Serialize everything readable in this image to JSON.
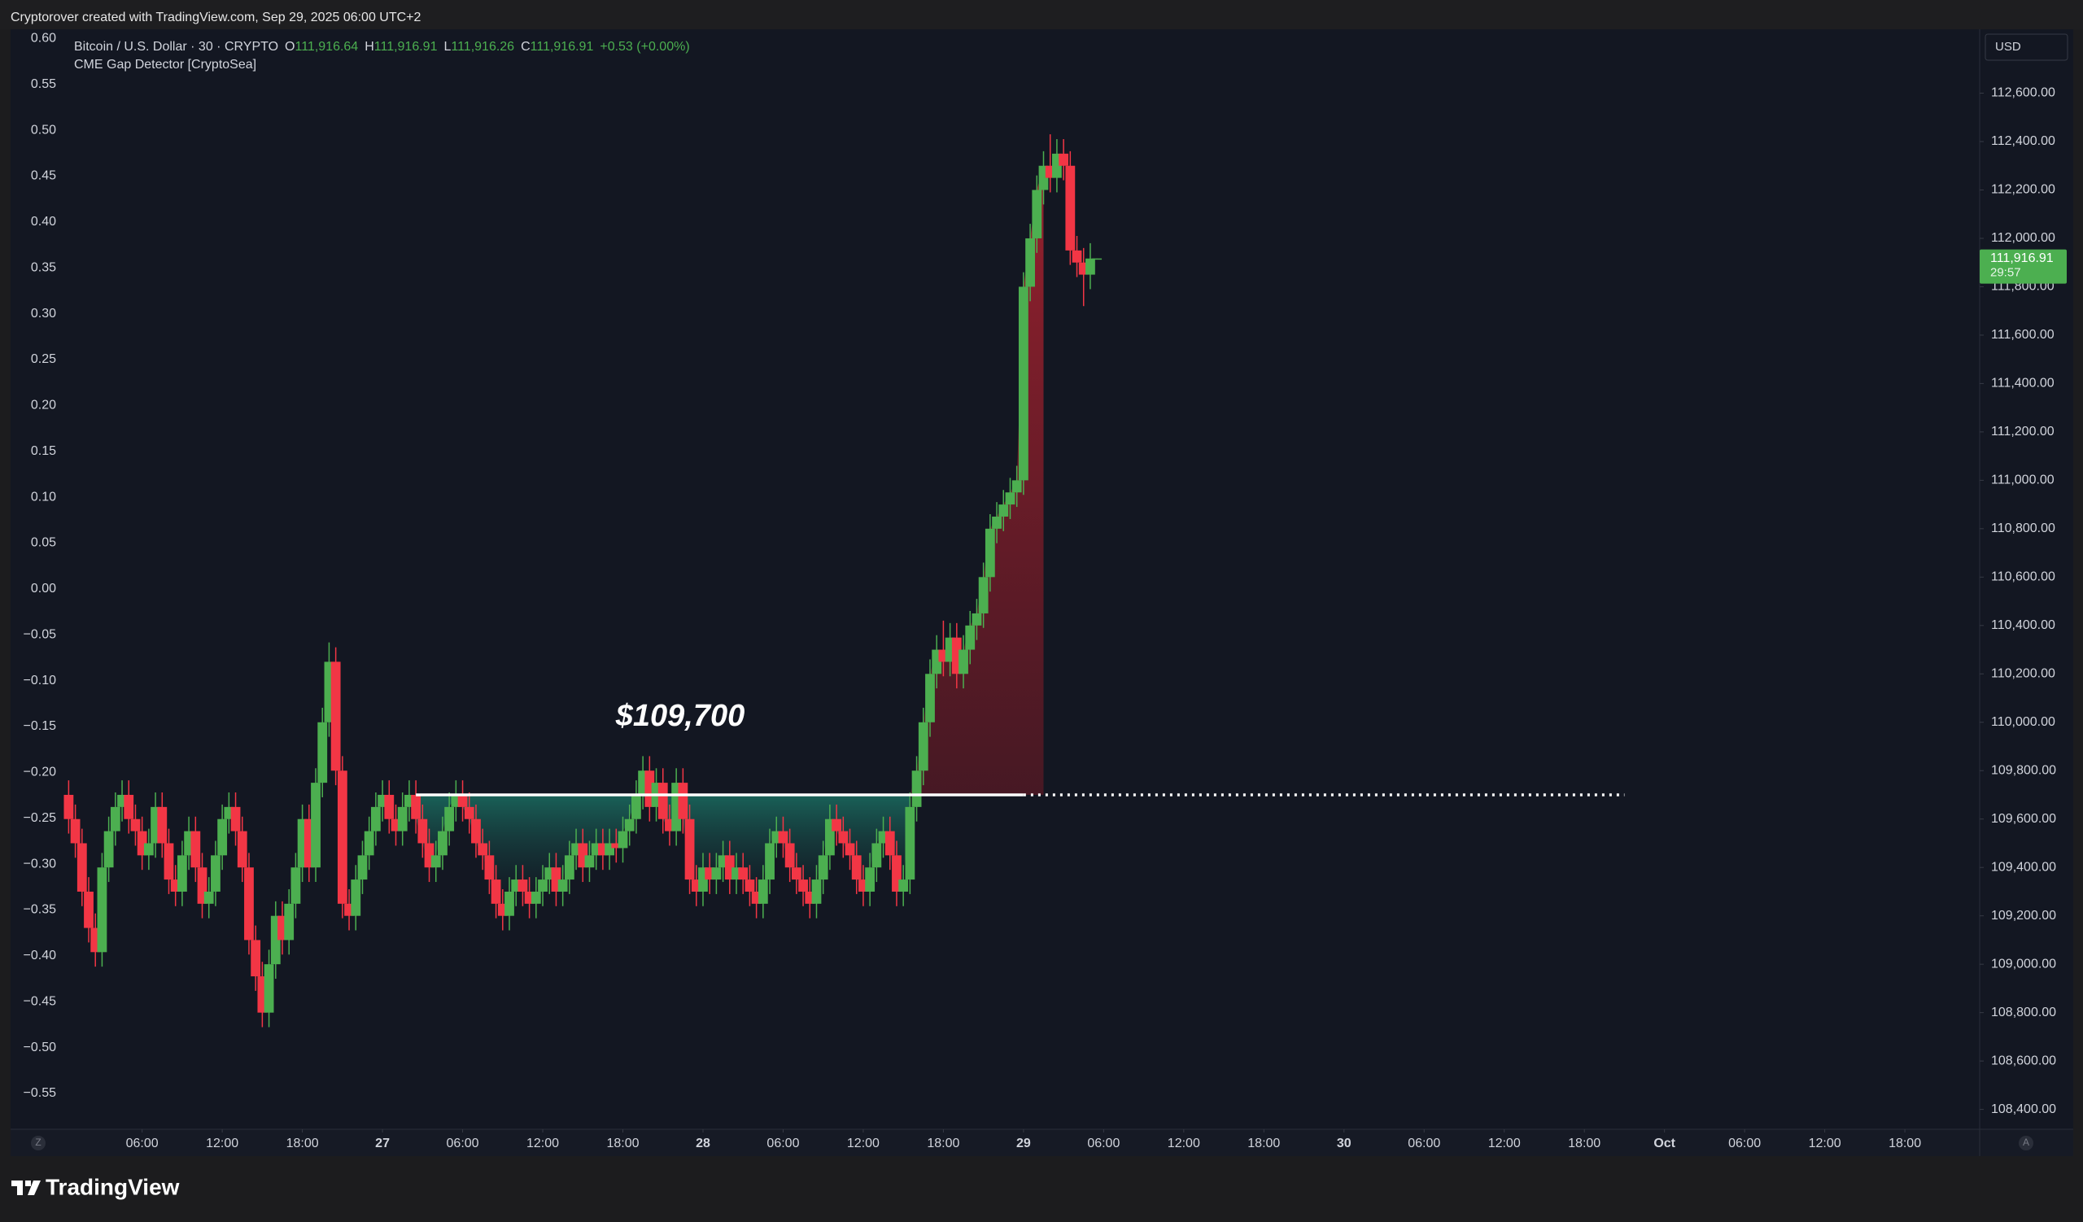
{
  "header": "Cryptorover created with TradingView.com, Sep 29, 2025 06:00 UTC+2",
  "brand": "TradingView",
  "corner_left": "Z",
  "corner_right": "A",
  "chart_data": {
    "type": "candlestick",
    "title": "Bitcoin / U.S. Dollar · 30 · CRYPTO",
    "ohlc_legend": [
      {
        "label": "O",
        "value": "111,916.64"
      },
      {
        "label": "H",
        "value": "111,916.91"
      },
      {
        "label": "L",
        "value": "111,916.26"
      },
      {
        "label": "C",
        "value": "111,916.91"
      }
    ],
    "change": "+0.53 (+0.00%)",
    "indicator": "CME Gap Detector [CryptoSea]",
    "currency": "USD",
    "last_price_label": "111,916.91",
    "countdown": "29:57",
    "annotation": "$109,700",
    "gap_level": 109700,
    "gap_x": [
      26.5,
      72,
      117
    ],
    "up_color": "#4caf50",
    "down_color": "#f23645",
    "xlim": [
      -3.85,
      143.6
    ],
    "xticks": [
      {
        "value": 6,
        "label": "06:00"
      },
      {
        "value": 12,
        "label": "12:00"
      },
      {
        "value": 18,
        "label": "18:00"
      },
      {
        "value": 24,
        "label": "27"
      },
      {
        "value": 30,
        "label": "06:00"
      },
      {
        "value": 36,
        "label": "12:00"
      },
      {
        "value": 42,
        "label": "18:00"
      },
      {
        "value": 48,
        "label": "28"
      },
      {
        "value": 54,
        "label": "06:00"
      },
      {
        "value": 60,
        "label": "12:00"
      },
      {
        "value": 66,
        "label": "18:00"
      },
      {
        "value": 72,
        "label": "29"
      },
      {
        "value": 78,
        "label": "06:00"
      },
      {
        "value": 84,
        "label": "12:00"
      },
      {
        "value": 90,
        "label": "18:00"
      },
      {
        "value": 96,
        "label": "30"
      },
      {
        "value": 102,
        "label": "06:00"
      },
      {
        "value": 108,
        "label": "12:00"
      },
      {
        "value": 114,
        "label": "18:00"
      },
      {
        "value": 120,
        "label": "Oct"
      },
      {
        "value": 126,
        "label": "06:00"
      },
      {
        "value": 132,
        "label": "12:00"
      },
      {
        "value": 138,
        "label": "18:00"
      }
    ],
    "ylim": [
      108318,
      112864
    ],
    "yticks": [
      {
        "value": 108400,
        "label": "108,400.00"
      },
      {
        "value": 108600,
        "label": "108,600.00"
      },
      {
        "value": 108800,
        "label": "108,800.00"
      },
      {
        "value": 109000,
        "label": "109,000.00"
      },
      {
        "value": 109200,
        "label": "109,200.00"
      },
      {
        "value": 109400,
        "label": "109,400.00"
      },
      {
        "value": 109600,
        "label": "109,600.00"
      },
      {
        "value": 109800,
        "label": "109,800.00"
      },
      {
        "value": 110000,
        "label": "110,000.00"
      },
      {
        "value": 110200,
        "label": "110,200.00"
      },
      {
        "value": 110400,
        "label": "110,400.00"
      },
      {
        "value": 110600,
        "label": "110,600.00"
      },
      {
        "value": 110800,
        "label": "110,800.00"
      },
      {
        "value": 111000,
        "label": "111,000.00"
      },
      {
        "value": 111200,
        "label": "111,200.00"
      },
      {
        "value": 111400,
        "label": "111,400.00"
      },
      {
        "value": 111600,
        "label": "111,600.00"
      },
      {
        "value": 111800,
        "label": "111,800.00"
      },
      {
        "value": 112000,
        "label": "112,000.00"
      },
      {
        "value": 112200,
        "label": "112,200.00"
      },
      {
        "value": 112400,
        "label": "112,400.00"
      },
      {
        "value": 112600,
        "label": "112,600.00"
      }
    ],
    "y2lim": [
      -0.589,
      0.61
    ],
    "y2ticks": [
      {
        "value": 0.6,
        "label": "0.60"
      },
      {
        "value": 0.55,
        "label": "0.55"
      },
      {
        "value": 0.5,
        "label": "0.50"
      },
      {
        "value": 0.45,
        "label": "0.45"
      },
      {
        "value": 0.4,
        "label": "0.40"
      },
      {
        "value": 0.35,
        "label": "0.35"
      },
      {
        "value": 0.3,
        "label": "0.30"
      },
      {
        "value": 0.25,
        "label": "0.25"
      },
      {
        "value": 0.2,
        "label": "0.20"
      },
      {
        "value": 0.15,
        "label": "0.15"
      },
      {
        "value": 0.1,
        "label": "0.10"
      },
      {
        "value": 0.05,
        "label": "0.05"
      },
      {
        "value": 0,
        "label": "0.00"
      },
      {
        "value": -0.05,
        "label": "−0.05"
      },
      {
        "value": -0.1,
        "label": "−0.10"
      },
      {
        "value": -0.15,
        "label": "−0.15"
      },
      {
        "value": -0.2,
        "label": "−0.20"
      },
      {
        "value": -0.25,
        "label": "−0.25"
      },
      {
        "value": -0.3,
        "label": "−0.30"
      },
      {
        "value": -0.35,
        "label": "−0.35"
      },
      {
        "value": -0.4,
        "label": "−0.40"
      },
      {
        "value": -0.45,
        "label": "−0.45"
      },
      {
        "value": -0.5,
        "label": "−0.50"
      },
      {
        "value": -0.55,
        "label": "−0.55"
      }
    ],
    "x": [
      0.5,
      1,
      1.5,
      2,
      2.5,
      3,
      3.5,
      4,
      4.5,
      5,
      5.5,
      6,
      6.5,
      7,
      7.5,
      8,
      8.5,
      9,
      9.5,
      10,
      10.5,
      11,
      11.5,
      12,
      12.5,
      13,
      13.5,
      14,
      14.5,
      15,
      15.5,
      16,
      16.5,
      17,
      17.5,
      18,
      18.5,
      19,
      19.5,
      20,
      20.5,
      21,
      21.5,
      22,
      22.5,
      23,
      23.5,
      24,
      24.5,
      25,
      25.5,
      26,
      26.5,
      27,
      27.5,
      28,
      28.5,
      29,
      29.5,
      30,
      30.5,
      31,
      31.5,
      32,
      32.5,
      33,
      33.5,
      34,
      34.5,
      35,
      35.5,
      36,
      36.5,
      37,
      37.5,
      38,
      38.5,
      39,
      39.5,
      40,
      40.5,
      41,
      41.5,
      42,
      42.5,
      43,
      43.5,
      44,
      44.5,
      45,
      45.5,
      46,
      46.5,
      47,
      47.5,
      48,
      48.5,
      49,
      49.5,
      50,
      50.5,
      51,
      51.5,
      52,
      52.5,
      53,
      53.5,
      54,
      54.5,
      55,
      55.5,
      56,
      56.5,
      57,
      57.5,
      58,
      58.5,
      59,
      59.5,
      60,
      60.5,
      61,
      61.5,
      62,
      62.5,
      63,
      63.5,
      64,
      64.5,
      65,
      65.5,
      66,
      66.5,
      67,
      67.5,
      68,
      68.5,
      69,
      69.5,
      70,
      70.5,
      71,
      71.5,
      72,
      72.5,
      73,
      73.5,
      74,
      74.5,
      75,
      75.5,
      76,
      76.5,
      77,
      77.5
    ],
    "open": [
      109700,
      109600,
      109500,
      109300,
      109150,
      109050,
      109400,
      109550,
      109650,
      109700,
      109600,
      109550,
      109450,
      109500,
      109650,
      109500,
      109350,
      109300,
      109450,
      109550,
      109400,
      109250,
      109300,
      109450,
      109600,
      109650,
      109550,
      109400,
      109100,
      108950,
      108800,
      109000,
      109200,
      109100,
      109250,
      109400,
      109600,
      109400,
      109750,
      110000,
      110250,
      109800,
      109250,
      109200,
      109350,
      109450,
      109550,
      109650,
      109700,
      109600,
      109550,
      109650,
      109700,
      109600,
      109500,
      109400,
      109450,
      109550,
      109650,
      109700,
      109650,
      109600,
      109500,
      109450,
      109350,
      109250,
      109200,
      109300,
      109350,
      109300,
      109250,
      109300,
      109350,
      109400,
      109300,
      109350,
      109450,
      109500,
      109400,
      109450,
      109500,
      109450,
      109500,
      109480,
      109550,
      109600,
      109700,
      109800,
      109650,
      109750,
      109600,
      109550,
      109750,
      109600,
      109350,
      109300,
      109400,
      109350,
      109400,
      109450,
      109350,
      109400,
      109350,
      109300,
      109250,
      109350,
      109500,
      109550,
      109500,
      109400,
      109350,
      109300,
      109250,
      109350,
      109450,
      109600,
      109550,
      109500,
      109450,
      109350,
      109300,
      109400,
      109500,
      109550,
      109450,
      109300,
      109350,
      109650,
      109800,
      110000,
      110200,
      110300,
      110250,
      110350,
      110200,
      110300,
      110400,
      110450,
      110600,
      110800,
      110850,
      110900,
      110950,
      111000,
      111800,
      112000,
      112200,
      112300,
      112250,
      112350,
      112300,
      111950,
      111900,
      111850,
      111916.64
    ],
    "high": [
      109760,
      109660,
      109560,
      109360,
      109210,
      109460,
      109610,
      109710,
      109760,
      109760,
      109660,
      109610,
      109560,
      109710,
      109710,
      109560,
      109410,
      109510,
      109610,
      109610,
      109460,
      109360,
      109510,
      109660,
      109710,
      109710,
      109610,
      109460,
      109160,
      109010,
      109060,
      109260,
      109260,
      109310,
      109460,
      109660,
      109660,
      109810,
      110060,
      110330,
      110310,
      109860,
      109310,
      109410,
      109510,
      109610,
      109710,
      109760,
      109760,
      109660,
      109710,
      109760,
      109760,
      109660,
      109560,
      109510,
      109610,
      109710,
      109760,
      109760,
      109710,
      109660,
      109560,
      109510,
      109410,
      109310,
      109360,
      109410,
      109410,
      109360,
      109360,
      109410,
      109460,
      109460,
      109410,
      109510,
      109560,
      109560,
      109510,
      109560,
      109560,
      109560,
      109560,
      109610,
      109660,
      109760,
      109860,
      109860,
      109810,
      109810,
      109660,
      109810,
      109810,
      109660,
      109410,
      109460,
      109460,
      109460,
      109510,
      109510,
      109460,
      109460,
      109410,
      109360,
      109410,
      109560,
      109610,
      109610,
      109560,
      109460,
      109410,
      109360,
      109410,
      109510,
      109660,
      109660,
      109610,
      109560,
      109510,
      109410,
      109460,
      109560,
      109610,
      109610,
      109510,
      109410,
      109710,
      109860,
      110060,
      110260,
      110360,
      110420,
      110410,
      110410,
      110360,
      110460,
      110510,
      110660,
      110860,
      110910,
      110960,
      111010,
      111060,
      111860,
      112060,
      112260,
      112360,
      112430,
      112410,
      112410,
      112360,
      112010,
      111960,
      111980,
      111916.91
    ],
    "low": [
      109540,
      109440,
      109240,
      109090,
      108990,
      108990,
      109340,
      109490,
      109590,
      109540,
      109490,
      109390,
      109390,
      109440,
      109440,
      109290,
      109240,
      109240,
      109390,
      109340,
      109190,
      109190,
      109240,
      109390,
      109540,
      109490,
      109340,
      109040,
      108890,
      108740,
      108740,
      108940,
      109040,
      109040,
      109190,
      109340,
      109340,
      109340,
      109690,
      109940,
      109740,
      109190,
      109140,
      109140,
      109290,
      109390,
      109490,
      109590,
      109540,
      109490,
      109490,
      109590,
      109540,
      109440,
      109340,
      109340,
      109390,
      109490,
      109590,
      109590,
      109540,
      109440,
      109390,
      109290,
      109190,
      109140,
      109140,
      109240,
      109240,
      109190,
      109190,
      109240,
      109290,
      109240,
      109240,
      109290,
      109390,
      109340,
      109340,
      109390,
      109390,
      109390,
      109420,
      109420,
      109490,
      109540,
      109640,
      109590,
      109590,
      109540,
      109490,
      109490,
      109540,
      109290,
      109240,
      109240,
      109290,
      109290,
      109340,
      109290,
      109290,
      109290,
      109240,
      109190,
      109190,
      109290,
      109440,
      109440,
      109340,
      109290,
      109240,
      109190,
      109190,
      109290,
      109390,
      109490,
      109440,
      109390,
      109290,
      109240,
      109240,
      109340,
      109440,
      109390,
      109240,
      109240,
      109290,
      109590,
      109740,
      109940,
      110140,
      110190,
      110190,
      110140,
      110140,
      110240,
      110340,
      110390,
      110540,
      110740,
      110790,
      110840,
      110890,
      110940,
      111740,
      111940,
      112140,
      112190,
      112190,
      112240,
      111890,
      111840,
      111720,
      111790,
      111916.26
    ],
    "close": [
      109600,
      109500,
      109300,
      109150,
      109050,
      109400,
      109550,
      109650,
      109700,
      109600,
      109550,
      109450,
      109500,
      109650,
      109500,
      109350,
      109300,
      109450,
      109550,
      109400,
      109250,
      109300,
      109450,
      109600,
      109650,
      109550,
      109400,
      109100,
      108950,
      108800,
      109000,
      109200,
      109100,
      109250,
      109400,
      109600,
      109400,
      109750,
      110000,
      110250,
      109800,
      109250,
      109200,
      109350,
      109450,
      109550,
      109650,
      109700,
      109600,
      109550,
      109650,
      109700,
      109600,
      109500,
      109400,
      109450,
      109550,
      109650,
      109700,
      109650,
      109600,
      109500,
      109450,
      109350,
      109250,
      109200,
      109300,
      109350,
      109300,
      109250,
      109300,
      109350,
      109400,
      109300,
      109350,
      109450,
      109500,
      109400,
      109450,
      109500,
      109450,
      109500,
      109480,
      109550,
      109600,
      109700,
      109800,
      109650,
      109750,
      109600,
      109550,
      109750,
      109600,
      109350,
      109300,
      109400,
      109350,
      109400,
      109450,
      109350,
      109400,
      109350,
      109300,
      109250,
      109350,
      109500,
      109550,
      109500,
      109400,
      109350,
      109300,
      109250,
      109350,
      109450,
      109600,
      109550,
      109500,
      109450,
      109350,
      109300,
      109400,
      109500,
      109550,
      109450,
      109300,
      109350,
      109650,
      109800,
      110000,
      110200,
      110300,
      110250,
      110350,
      110200,
      110300,
      110400,
      110450,
      110600,
      110800,
      110850,
      110900,
      110950,
      111000,
      111800,
      112000,
      112200,
      112300,
      112250,
      112350,
      112300,
      111950,
      111900,
      111850,
      111916.64,
      111916.91
    ]
  }
}
